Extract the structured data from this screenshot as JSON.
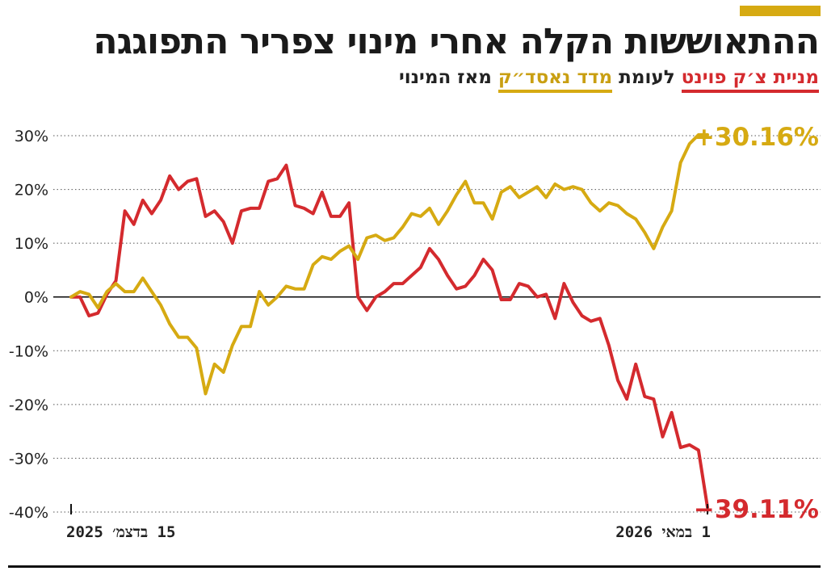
{
  "header": {
    "title": "ההתאוששות הקלה אחרי מינוי צפריר התפוגגה",
    "subtitle_part1": "מניית צ׳ק פוינט",
    "subtitle_part2": " לעומת ",
    "subtitle_part3": "מדד נאסד״ק",
    "subtitle_part4": " מאז המינוי"
  },
  "colors": {
    "checkpoint": "#d42a2e",
    "nasdaq": "#d6aa12",
    "accent": "#d6aa12"
  },
  "chart_data": {
    "type": "line",
    "x_start": "15 בדצמ׳ 2025",
    "x_end": "1 במאי 2026",
    "ylim": [
      -40,
      30
    ],
    "y_ticks": [
      30,
      20,
      10,
      0,
      -10,
      -20,
      -30,
      -40
    ],
    "y_tick_labels": [
      "30%",
      "20%",
      "10%",
      "0%",
      "-10%",
      "-20%",
      "-30%",
      "-40%"
    ],
    "grid": "horizontal-dotted",
    "series": [
      {
        "name": "מניית צ׳ק פוינט",
        "end_label": "−39.11%",
        "color": "#d42a2e",
        "values": [
          0,
          0,
          -3.5,
          -3,
          0.5,
          3,
          16,
          13.5,
          18,
          15.5,
          18,
          22.5,
          20,
          21.5,
          22,
          15,
          16,
          14,
          10,
          16,
          16.5,
          16.5,
          21.5,
          22,
          24.5,
          17,
          16.5,
          15.5,
          19.5,
          15,
          15,
          17.5,
          0,
          -2.5,
          0,
          1,
          2.5,
          2.5,
          4,
          5.5,
          9,
          7,
          4,
          1.5,
          2,
          4,
          7,
          5,
          -0.5,
          -0.5,
          2.5,
          2,
          0,
          0.5,
          -4,
          2.5,
          -1,
          -3.5,
          -4.5,
          -4,
          -9,
          -15.5,
          -19,
          -12.5,
          -18.5,
          -19,
          -26,
          -21.5,
          -28,
          -27.5,
          -28.5,
          -39.11
        ]
      },
      {
        "name": "מדד נאסד״ק",
        "end_label": "+30.16%",
        "color": "#d6aa12",
        "values": [
          0,
          1,
          0.5,
          -2,
          1,
          2.5,
          1,
          1,
          3.5,
          1,
          -1.5,
          -5,
          -7.5,
          -7.5,
          -9.5,
          -18,
          -12.5,
          -14,
          -9,
          -5.5,
          -5.5,
          1,
          -1.5,
          0,
          2,
          1.5,
          1.5,
          6,
          7.5,
          7,
          8.5,
          9.5,
          7,
          11,
          11.5,
          10.5,
          11,
          13,
          15.5,
          15,
          16.5,
          13.5,
          16,
          19,
          21.5,
          17.5,
          17.5,
          14.5,
          19.5,
          20.5,
          18.5,
          19.5,
          20.5,
          18.5,
          21,
          20,
          20.5,
          20,
          17.5,
          16,
          17.5,
          17,
          15.5,
          14.5,
          12,
          9,
          13,
          16,
          25,
          28.5,
          30.16,
          30.16
        ]
      }
    ]
  }
}
